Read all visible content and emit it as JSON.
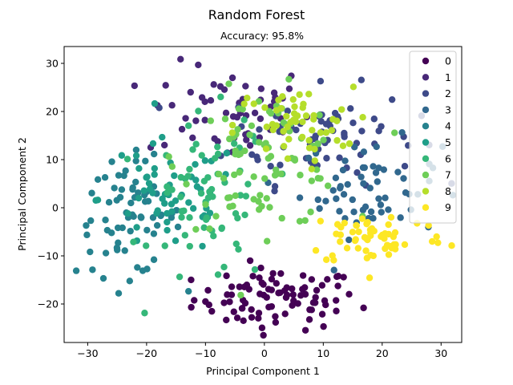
{
  "chart_data": {
    "type": "scatter",
    "title": "Random Forest",
    "subtitle": "Accuracy: 95.8%",
    "xlabel": "Principal Component 1",
    "ylabel": "Principal Component 2",
    "xlim": [
      -34,
      33.5
    ],
    "ylim": [
      -28,
      33.5
    ],
    "xticks": [
      -30,
      -20,
      -10,
      0,
      10,
      20,
      30
    ],
    "yticks": [
      -20,
      -10,
      0,
      10,
      20,
      30
    ],
    "grid": false,
    "legend_position": "top-right",
    "series": [
      {
        "name": "0",
        "color": "#440154",
        "cx": 2,
        "cy": -19,
        "sx": 7,
        "sy": 3.2,
        "n": 90
      },
      {
        "name": "1",
        "color": "#482878",
        "cx": -6,
        "cy": 20,
        "sx": 7,
        "sy": 5,
        "n": 55
      },
      {
        "name": "2",
        "color": "#3e4a89",
        "cx": 10,
        "cy": 15,
        "sx": 8,
        "sy": 5,
        "n": 75
      },
      {
        "name": "3",
        "color": "#31688e",
        "cx": 18,
        "cy": 4,
        "sx": 6,
        "sy": 5,
        "n": 60
      },
      {
        "name": "4",
        "color": "#26828e",
        "cx": -23,
        "cy": -2,
        "sx": 4.5,
        "sy": 6,
        "n": 70
      },
      {
        "name": "5",
        "color": "#1f9e89",
        "cx": -16,
        "cy": 2,
        "sx": 6,
        "sy": 6,
        "n": 55
      },
      {
        "name": "6",
        "color": "#35b779",
        "cx": -9,
        "cy": 1,
        "sx": 5,
        "sy": 9,
        "n": 65
      },
      {
        "name": "7",
        "color": "#6ece58",
        "cx": 0,
        "cy": 10,
        "sx": 7,
        "sy": 7,
        "n": 85
      },
      {
        "name": "8",
        "color": "#b5de2b",
        "cx": 5,
        "cy": 17,
        "sx": 5,
        "sy": 4,
        "n": 55
      },
      {
        "name": "9",
        "color": "#fde725",
        "cx": 19,
        "cy": -6,
        "sx": 6,
        "sy": 3,
        "n": 60
      }
    ]
  }
}
